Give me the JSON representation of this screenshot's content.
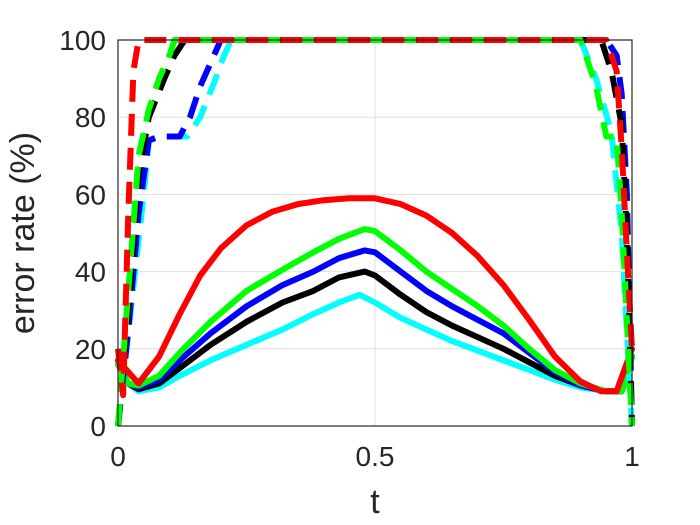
{
  "chart_data": {
    "type": "line",
    "title": "",
    "xlabel": "t",
    "ylabel": "error rate (%)",
    "xlim": [
      0,
      1
    ],
    "ylim": [
      0,
      100
    ],
    "xticks": [
      0,
      0.5,
      1
    ],
    "xtick_labels": [
      "0",
      "0.5",
      "1"
    ],
    "yticks": [
      0,
      20,
      40,
      60,
      80,
      100
    ],
    "ytick_labels": [
      "0",
      "20",
      "40",
      "60",
      "80",
      "100"
    ],
    "grid": true,
    "legend": "none",
    "series": [
      {
        "color": "#00ffff",
        "style": "solid",
        "x": [
          0,
          0.02,
          0.04,
          0.08,
          0.12,
          0.18,
          0.25,
          0.32,
          0.38,
          0.43,
          0.47,
          0.5,
          0.55,
          0.6,
          0.65,
          0.7,
          0.75,
          0.8,
          0.85,
          0.9,
          0.95,
          0.98,
          1
        ],
        "y": [
          16,
          11,
          9,
          10,
          13,
          17,
          21,
          25,
          29,
          32,
          34,
          32,
          28,
          25,
          22,
          19.5,
          17,
          14.5,
          12,
          10,
          9,
          9,
          18
        ]
      },
      {
        "color": "#000000",
        "style": "solid",
        "x": [
          0,
          0.02,
          0.04,
          0.08,
          0.12,
          0.18,
          0.25,
          0.32,
          0.38,
          0.43,
          0.48,
          0.5,
          0.55,
          0.6,
          0.65,
          0.7,
          0.75,
          0.8,
          0.85,
          0.9,
          0.95,
          0.98,
          1
        ],
        "y": [
          16,
          11,
          9.5,
          11,
          15,
          21,
          27,
          32,
          35,
          38.5,
          40,
          39,
          34,
          29.5,
          26,
          23,
          20,
          16.5,
          13,
          10.5,
          9,
          9,
          18
        ]
      },
      {
        "color": "#0000ff",
        "style": "solid",
        "x": [
          0,
          0.02,
          0.04,
          0.08,
          0.12,
          0.18,
          0.25,
          0.32,
          0.38,
          0.43,
          0.48,
          0.5,
          0.55,
          0.6,
          0.65,
          0.7,
          0.75,
          0.8,
          0.85,
          0.9,
          0.95,
          0.98,
          1
        ],
        "y": [
          16,
          11,
          10,
          12,
          17,
          24,
          31,
          36.5,
          40,
          43.5,
          45.5,
          45,
          40,
          35,
          31,
          27.5,
          24,
          19,
          14,
          10.5,
          9,
          9,
          18
        ]
      },
      {
        "color": "#00ff00",
        "style": "solid",
        "x": [
          0,
          0.02,
          0.04,
          0.08,
          0.12,
          0.18,
          0.25,
          0.32,
          0.38,
          0.43,
          0.48,
          0.5,
          0.55,
          0.6,
          0.65,
          0.7,
          0.75,
          0.8,
          0.85,
          0.9,
          0.95,
          0.98,
          1
        ],
        "y": [
          16,
          11,
          10.5,
          13,
          19,
          27,
          35,
          40.5,
          45,
          48.5,
          51,
          50.5,
          45.5,
          40,
          35.5,
          31,
          26,
          20,
          14.5,
          11,
          9,
          9,
          18
        ]
      },
      {
        "color": "#ff0000",
        "style": "solid",
        "x": [
          0,
          0.02,
          0.04,
          0.08,
          0.12,
          0.16,
          0.2,
          0.25,
          0.3,
          0.35,
          0.4,
          0.45,
          0.5,
          0.55,
          0.6,
          0.65,
          0.7,
          0.75,
          0.8,
          0.85,
          0.9,
          0.94,
          0.97,
          1
        ],
        "y": [
          17,
          14,
          11,
          18,
          29,
          39,
          46,
          52,
          55.5,
          57.5,
          58.5,
          59,
          59,
          57.5,
          54.5,
          50,
          44,
          36.5,
          27.5,
          18,
          11.5,
          9,
          9,
          20
        ]
      },
      {
        "color": "#00ffff",
        "style": "dashed",
        "x": [
          0,
          0.025,
          0.05,
          0.06,
          0.08,
          0.11,
          0.135,
          0.16,
          0.19,
          0.2,
          0.22,
          0.3,
          0.4,
          0.5,
          0.6,
          0.7,
          0.8,
          0.9,
          0.93,
          0.96,
          0.98,
          1
        ],
        "y": [
          0,
          30,
          60,
          74,
          75,
          75,
          75,
          80,
          90,
          94,
          100,
          100,
          100,
          100,
          100,
          100,
          100,
          100,
          90,
          76,
          50,
          0
        ]
      },
      {
        "color": "#0000ff",
        "style": "dashed",
        "x": [
          0,
          0.02,
          0.04,
          0.06,
          0.08,
          0.12,
          0.14,
          0.16,
          0.18,
          0.2,
          0.3,
          0.4,
          0.5,
          0.6,
          0.7,
          0.8,
          0.9,
          0.95,
          0.97,
          0.98,
          0.99,
          1
        ],
        "y": [
          0,
          25,
          55,
          74,
          75,
          75,
          80,
          88,
          94,
          100,
          100,
          100,
          100,
          100,
          100,
          100,
          100,
          100,
          96,
          86,
          60,
          0
        ]
      },
      {
        "color": "#000000",
        "style": "dashed",
        "x": [
          0,
          0.02,
          0.04,
          0.06,
          0.09,
          0.11,
          0.13,
          0.2,
          0.3,
          0.4,
          0.5,
          0.6,
          0.7,
          0.8,
          0.9,
          0.94,
          0.96,
          0.98,
          0.99,
          1
        ],
        "y": [
          0,
          30,
          65,
          80,
          90,
          96,
          100,
          100,
          100,
          100,
          100,
          100,
          100,
          100,
          100,
          100,
          92,
          78,
          50,
          0
        ]
      },
      {
        "color": "#00ff00",
        "style": "dashed",
        "x": [
          0,
          0.02,
          0.04,
          0.06,
          0.08,
          0.1,
          0.11,
          0.2,
          0.3,
          0.4,
          0.5,
          0.6,
          0.7,
          0.8,
          0.9,
          0.93,
          0.95,
          0.97,
          0.98,
          1
        ],
        "y": [
          0,
          35,
          70,
          82,
          90,
          96,
          100,
          100,
          100,
          100,
          100,
          100,
          100,
          100,
          100,
          88,
          75,
          75,
          55,
          0
        ]
      },
      {
        "color": "#ff0000",
        "style": "dashed",
        "x": [
          0,
          0.01,
          0.02,
          0.03,
          0.04,
          0.06,
          0.1,
          0.2,
          0.3,
          0.4,
          0.5,
          0.6,
          0.7,
          0.8,
          0.9,
          0.95,
          0.97,
          0.98,
          0.99,
          1
        ],
        "y": [
          20,
          8,
          55,
          92,
          100,
          100,
          100,
          100,
          100,
          100,
          100,
          100,
          100,
          100,
          100,
          100,
          92,
          72,
          45,
          20
        ]
      }
    ]
  }
}
